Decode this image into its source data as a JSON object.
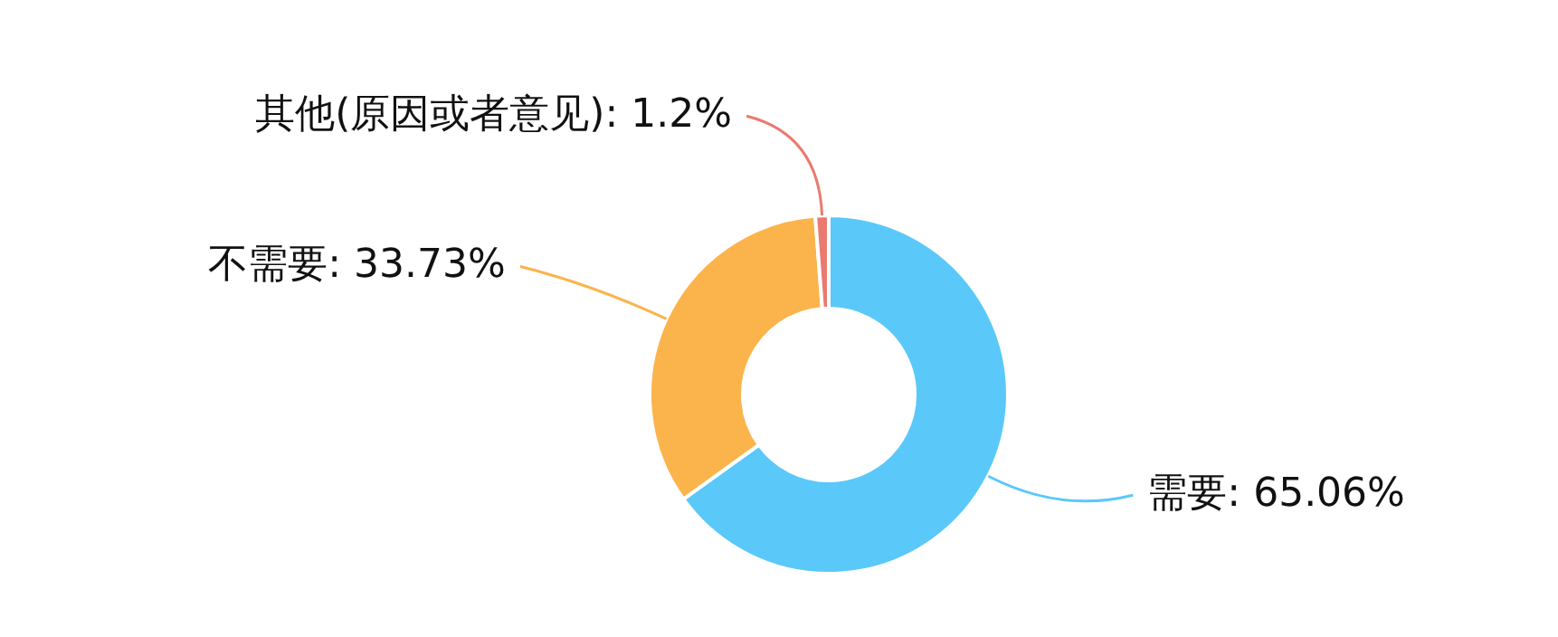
{
  "chart_data": {
    "type": "donut",
    "categories": [
      "需要",
      "不需要",
      "其他(原因或者意见)"
    ],
    "values": [
      65.06,
      33.73,
      1.2
    ],
    "value_labels": [
      "65.06%",
      "33.73%",
      "1.2%"
    ],
    "colors": [
      "#5bc8fa",
      "#fbb44c",
      "#ea7a70"
    ],
    "legend": false
  }
}
